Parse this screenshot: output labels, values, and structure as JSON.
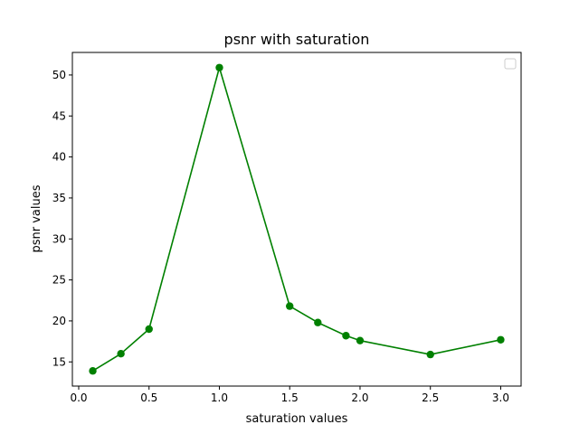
{
  "chart_data": {
    "type": "line",
    "title": "psnr with saturation",
    "xlabel": "saturation values",
    "ylabel": "psnr values",
    "x": [
      0.1,
      0.3,
      0.5,
      1.0,
      1.5,
      1.7,
      1.9,
      2.0,
      2.5,
      3.0
    ],
    "series": [
      {
        "values": [
          13.9,
          16.0,
          19.0,
          50.9,
          21.8,
          19.8,
          18.2,
          17.6,
          15.9,
          17.7
        ],
        "color": "#008000",
        "marker": "circle"
      }
    ],
    "xlim": [
      -0.045,
      3.145
    ],
    "ylim": [
      12.05,
      52.75
    ],
    "xticks": [
      0.0,
      0.5,
      1.0,
      1.5,
      2.0,
      2.5,
      3.0
    ],
    "xtick_labels": [
      "0.0",
      "0.5",
      "1.0",
      "1.5",
      "2.0",
      "2.5",
      "3.0"
    ],
    "yticks": [
      15,
      20,
      25,
      30,
      35,
      40,
      45,
      50
    ],
    "ytick_labels": [
      "15",
      "20",
      "25",
      "30",
      "35",
      "40",
      "45",
      "50"
    ],
    "grid": false,
    "legend": "top-right"
  }
}
